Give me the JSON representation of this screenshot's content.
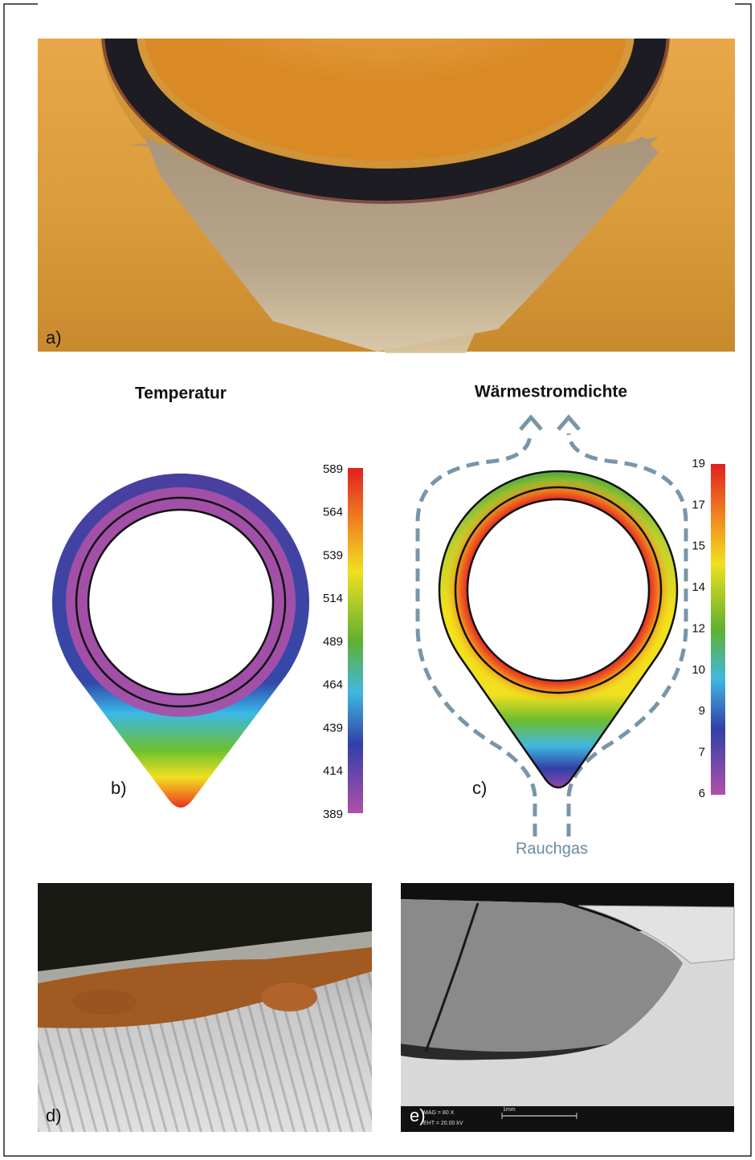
{
  "panels": {
    "a": {
      "label": "a)"
    },
    "b": {
      "title": "Temperatur",
      "label": "b)",
      "colorbar_ticks": [
        589,
        564,
        539,
        514,
        489,
        464,
        439,
        414,
        389
      ]
    },
    "c": {
      "title": "Wärmestromdichte",
      "label": "c)",
      "colorbar_ticks": [
        19,
        17,
        15,
        14,
        12,
        10,
        9,
        7,
        6
      ],
      "flow_label": "Rauchgas"
    },
    "d": {
      "label": "d)"
    },
    "e": {
      "label": "e)",
      "info": [
        "MAG =   80 X",
        "EHT = 20.00 kV"
      ],
      "scale_label": "1mm"
    }
  }
}
